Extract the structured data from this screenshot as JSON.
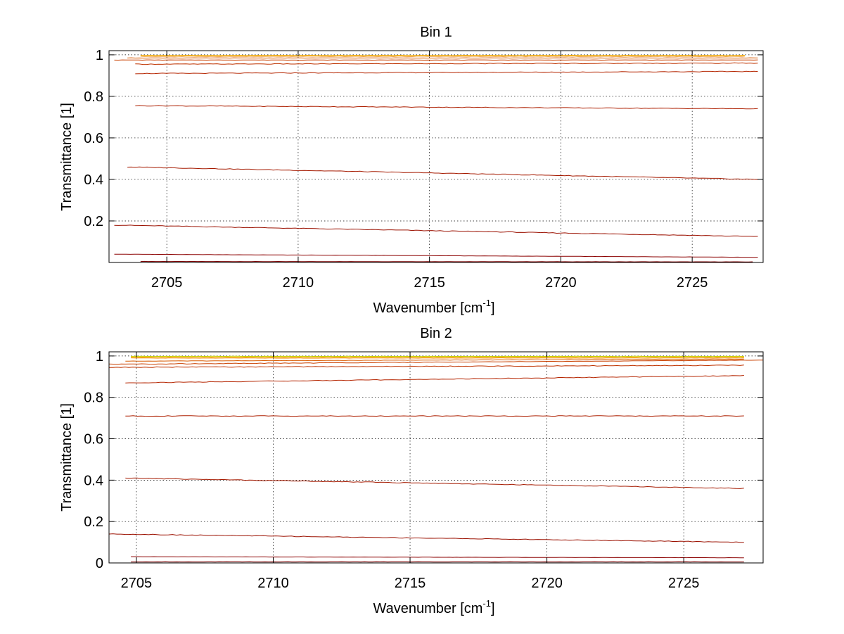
{
  "chart_data": [
    {
      "type": "line",
      "title": "Bin 1",
      "xlabel": "Wavenumber [cm",
      "xlabel_sup": "-1",
      "xlabel_end": "]",
      "ylabel": "Transmittance [1]",
      "xlim": [
        2702.8,
        2727.7
      ],
      "ylim": [
        0.0,
        1.02
      ],
      "xticks": [
        2705,
        2710,
        2715,
        2720,
        2725
      ],
      "yticks": [
        0.2,
        0.4,
        0.6,
        0.8,
        1.0
      ],
      "ytick_labels": [
        "0.2",
        "0.4",
        "0.6",
        "0.8",
        "1"
      ],
      "grid": true,
      "series": [
        {
          "color": "#7a0000",
          "x": [
            2704.0,
            2727.3
          ],
          "y": [
            0.005,
            0.003
          ]
        },
        {
          "color": "#8b0000",
          "x": [
            2703.0,
            2727.5
          ],
          "y": [
            0.04,
            0.025
          ]
        },
        {
          "color": "#9b1000",
          "x": [
            2703.0,
            2727.5
          ],
          "y": [
            0.18,
            0.125
          ]
        },
        {
          "color": "#a51a00",
          "x": [
            2703.5,
            2727.5
          ],
          "y": [
            0.46,
            0.4
          ]
        },
        {
          "color": "#ad1f00",
          "x": [
            2703.8,
            2727.5
          ],
          "y": [
            0.755,
            0.74
          ]
        },
        {
          "color": "#b52500",
          "x": [
            2703.8,
            2727.5
          ],
          "y": [
            0.91,
            0.92
          ]
        },
        {
          "color": "#bf3300",
          "x": [
            2703.8,
            2727.5
          ],
          "y": [
            0.955,
            0.96
          ]
        },
        {
          "color": "#c94000",
          "x": [
            2703.0,
            2727.5
          ],
          "y": [
            0.975,
            0.975
          ]
        },
        {
          "color": "#d85a00",
          "x": [
            2703.5,
            2727.5
          ],
          "y": [
            0.985,
            0.985
          ]
        },
        {
          "color": "#ee8a00",
          "x": [
            2704.0,
            2727.0
          ],
          "y": [
            0.993,
            0.993
          ]
        },
        {
          "color": "#f5b000",
          "x": [
            2704.0,
            2727.0
          ],
          "y": [
            0.997,
            0.997
          ]
        }
      ]
    },
    {
      "type": "line",
      "title": "Bin 2",
      "xlabel": "Wavenumber [cm",
      "xlabel_sup": "-1",
      "xlabel_end": "]",
      "ylabel": "Transmittance [1]",
      "xlim": [
        2704.0,
        2727.9
      ],
      "ylim": [
        0.0,
        1.02
      ],
      "xticks": [
        2705,
        2710,
        2715,
        2720,
        2725
      ],
      "yticks": [
        0.0,
        0.2,
        0.4,
        0.6,
        0.8,
        1.0
      ],
      "ytick_labels": [
        "0",
        "0.2",
        "0.4",
        "0.6",
        "0.8",
        "1"
      ],
      "grid": true,
      "series": [
        {
          "color": "#7a0000",
          "x": [
            2704.8,
            2727.2
          ],
          "y": [
            0.005,
            0.005
          ]
        },
        {
          "color": "#8b0000",
          "x": [
            2704.8,
            2727.2
          ],
          "y": [
            0.03,
            0.025
          ]
        },
        {
          "color": "#9b1000",
          "x": [
            2704.0,
            2727.2
          ],
          "y": [
            0.14,
            0.1
          ]
        },
        {
          "color": "#a51a00",
          "x": [
            2704.6,
            2727.2
          ],
          "y": [
            0.41,
            0.36
          ]
        },
        {
          "color": "#ad1f00",
          "x": [
            2704.6,
            2727.2
          ],
          "y": [
            0.71,
            0.71
          ]
        },
        {
          "color": "#b52500",
          "x": [
            2704.6,
            2727.2
          ],
          "y": [
            0.87,
            0.905
          ]
        },
        {
          "color": "#bf3300",
          "x": [
            2704.0,
            2727.2
          ],
          "y": [
            0.945,
            0.955
          ]
        },
        {
          "color": "#c94000",
          "x": [
            2704.0,
            2727.9
          ],
          "y": [
            0.96,
            0.98
          ]
        },
        {
          "color": "#d85a00",
          "x": [
            2704.6,
            2727.2
          ],
          "y": [
            0.975,
            0.985
          ]
        },
        {
          "color": "#ee8a00",
          "x": [
            2704.8,
            2727.2
          ],
          "y": [
            0.99,
            0.99
          ]
        },
        {
          "color": "#f5b000",
          "x": [
            2704.8,
            2727.2
          ],
          "y": [
            0.995,
            0.995
          ]
        },
        {
          "color": "#c8d000",
          "x": [
            2704.8,
            2727.2
          ],
          "y": [
            0.998,
            0.998
          ]
        }
      ]
    }
  ]
}
